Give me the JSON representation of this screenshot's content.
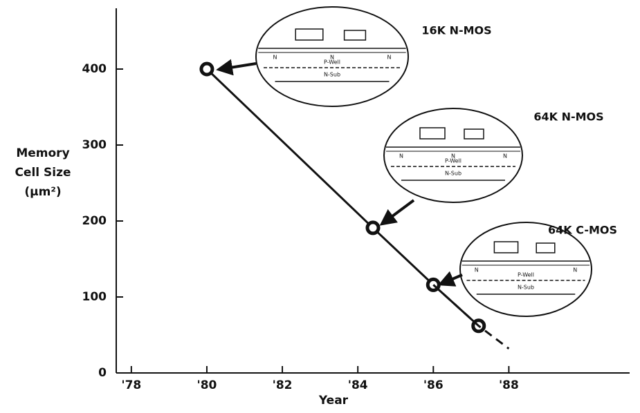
{
  "chart_data": {
    "type": "line",
    "xlabel": "Year",
    "ylabel": [
      "Memory",
      "Cell Size",
      "(μm²)"
    ],
    "series": [
      {
        "color": "#111111",
        "markers": true,
        "dashed": false,
        "x": [
          1980,
          1984.4,
          1986,
          1987.2
        ],
        "values": [
          400,
          191,
          116,
          62
        ]
      },
      {
        "color": "#111111",
        "markers": false,
        "dashed": true,
        "x": [
          1986,
          1987.2,
          1988
        ],
        "values": [
          116,
          62,
          32
        ]
      }
    ],
    "xlim": [
      1977.6,
      1991.2
    ],
    "xticks": [
      {
        "value": 1978,
        "label": "'78"
      },
      {
        "value": 1980,
        "label": "'80"
      },
      {
        "value": 1982,
        "label": "'82"
      },
      {
        "value": 1984,
        "label": "'84"
      },
      {
        "value": 1986,
        "label": "'86"
      },
      {
        "value": 1988,
        "label": "'88"
      }
    ],
    "ylim": [
      0,
      480
    ],
    "yticks": [
      0,
      100,
      200,
      300,
      400
    ],
    "annotations": [
      {
        "title": "16K N-MOS",
        "labels": [
          "N",
          "N",
          "N",
          "P-Well",
          "N-Sub"
        ]
      },
      {
        "title": "64K N-MOS",
        "labels": [
          "N",
          "N",
          "N",
          "P-Well",
          "N-Sub"
        ]
      },
      {
        "title": "64K C-MOS",
        "labels": [
          "N",
          "N",
          "P-Well",
          "N-Sub"
        ]
      }
    ]
  }
}
